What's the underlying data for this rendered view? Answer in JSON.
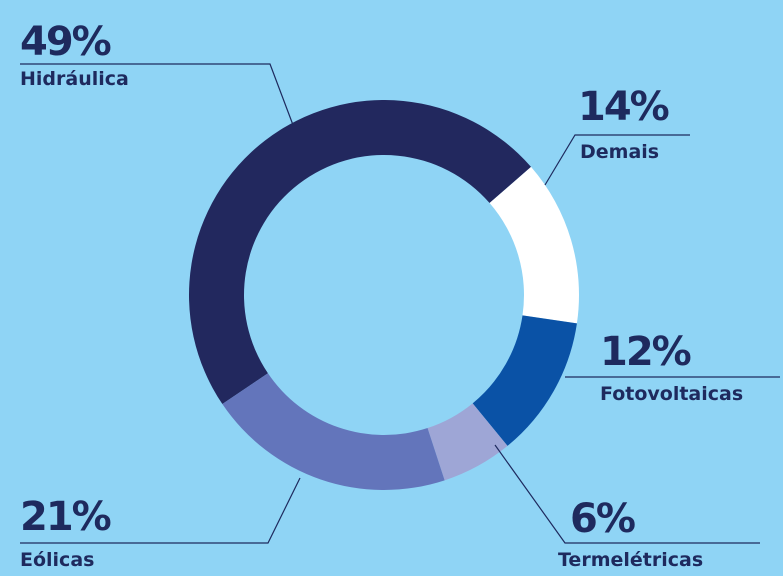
{
  "chart_data": {
    "type": "donut",
    "categories": [
      "Hidráulica",
      "Demais",
      "Fotovoltaicas",
      "Termelétricas",
      "Eólicas"
    ],
    "values": [
      49,
      14,
      12,
      6,
      21
    ],
    "value_labels": [
      "49%",
      "14%",
      "12%",
      "6%",
      "21%"
    ],
    "colors": [
      "#22285e",
      "#ffffff",
      "#0a52a6",
      "#9ea6d6",
      "#6375bb"
    ]
  }
}
